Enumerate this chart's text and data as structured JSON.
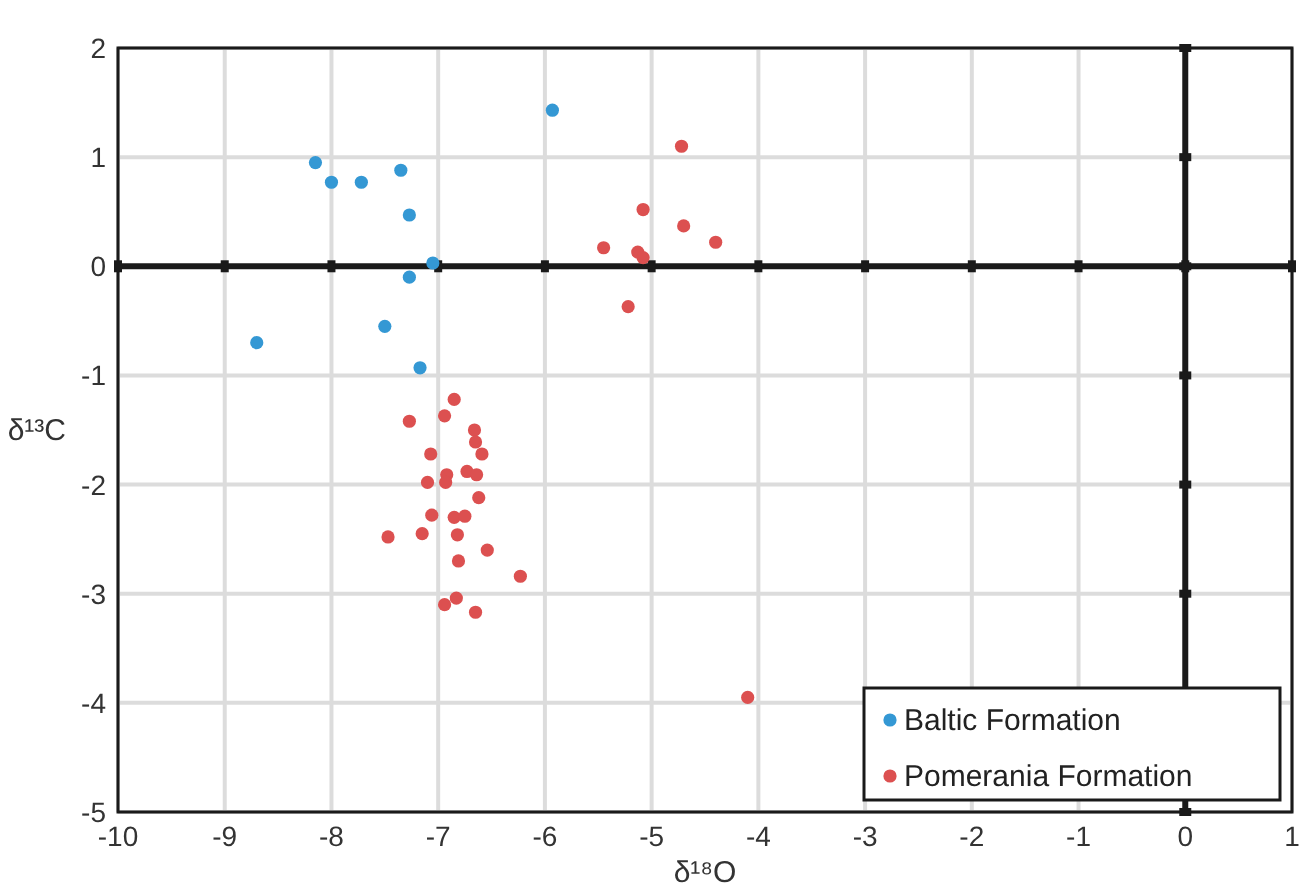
{
  "chart_data": {
    "type": "scatter",
    "xlabel": "δ¹⁸O",
    "ylabel": "δ¹³C",
    "xlim": [
      -10,
      1
    ],
    "ylim": [
      -5,
      2
    ],
    "xticks": [
      -10,
      -9,
      -8,
      -7,
      -6,
      -5,
      -4,
      -3,
      -2,
      -1,
      0,
      1
    ],
    "yticks": [
      -5,
      -4,
      -3,
      -2,
      -1,
      0,
      1,
      2
    ],
    "grid": true,
    "legend": "bottom right",
    "marker": "circle",
    "series": [
      {
        "name": "Baltic Formation",
        "color": "#3498d4",
        "x": [
          -8.7,
          -8.15,
          -8.0,
          -7.72,
          -7.35,
          -7.27,
          -7.27,
          -7.05,
          -7.5,
          -7.17,
          -5.93
        ],
        "values": [
          -0.7,
          0.95,
          0.77,
          0.77,
          0.88,
          0.47,
          -0.1,
          0.03,
          -0.55,
          -0.93,
          1.43
        ]
      },
      {
        "name": "Pomerania Formation",
        "color": "#dc5050",
        "x": [
          -4.72,
          -5.08,
          -4.7,
          -4.4,
          -5.45,
          -5.13,
          -5.08,
          -5.22,
          -6.85,
          -7.27,
          -6.94,
          -6.66,
          -6.65,
          -6.59,
          -7.07,
          -7.1,
          -6.92,
          -6.93,
          -6.73,
          -6.64,
          -6.62,
          -7.06,
          -6.85,
          -6.75,
          -7.47,
          -7.15,
          -6.82,
          -6.54,
          -6.23,
          -6.81,
          -6.83,
          -6.94,
          -6.65,
          -4.1
        ],
        "values": [
          1.1,
          0.52,
          0.37,
          0.22,
          0.17,
          0.13,
          0.08,
          -0.37,
          -1.22,
          -1.42,
          -1.37,
          -1.5,
          -1.61,
          -1.72,
          -1.72,
          -1.98,
          -1.91,
          -1.98,
          -1.88,
          -1.91,
          -2.12,
          -2.28,
          -2.3,
          -2.29,
          -2.48,
          -2.45,
          -2.46,
          -2.6,
          -2.84,
          -2.7,
          -3.04,
          -3.1,
          -3.17,
          -3.95
        ]
      }
    ]
  }
}
